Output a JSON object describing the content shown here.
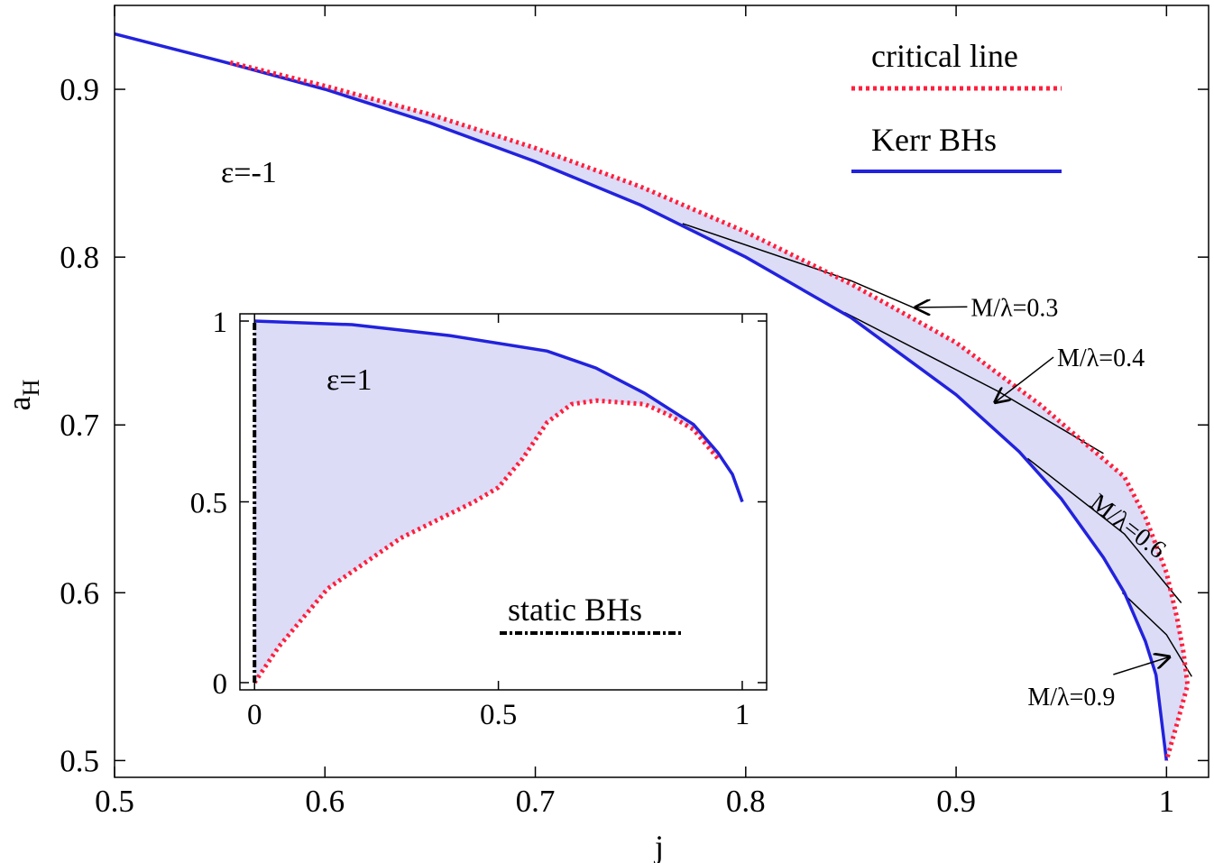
{
  "chart_data": [
    {
      "id": "main",
      "type": "line",
      "xlabel": "j",
      "ylabel": "a",
      "ylabel_sub": "H",
      "xlim": [
        0.5,
        1.02
      ],
      "ylim": [
        0.49,
        0.95
      ],
      "xticks": [
        0.5,
        0.6,
        0.7,
        0.8,
        0.9,
        1
      ],
      "xtick_labels": [
        "0.5",
        "0.6",
        "0.7",
        "0.8",
        "0.9",
        "1"
      ],
      "yticks": [
        0.5,
        0.6,
        0.7,
        0.8,
        0.9
      ],
      "ytick_labels": [
        "0.5",
        "0.6",
        "0.7",
        "0.8",
        "0.9"
      ],
      "epsilon_label": "ε=-1",
      "legend": [
        {
          "label": "critical line",
          "color": "#ff1f3d",
          "style": "dotted"
        },
        {
          "label": "Kerr BHs",
          "color": "#2222dd",
          "style": "solid"
        }
      ],
      "series": [
        {
          "name": "Kerr BHs",
          "color": "#2222dd",
          "x": [
            0.5,
            0.55,
            0.6,
            0.65,
            0.7,
            0.75,
            0.8,
            0.85,
            0.9,
            0.93,
            0.95,
            0.97,
            0.98,
            0.99,
            0.995,
            1.0
          ],
          "y": [
            0.933,
            0.917,
            0.9,
            0.88,
            0.857,
            0.831,
            0.8,
            0.764,
            0.718,
            0.684,
            0.656,
            0.621,
            0.6,
            0.571,
            0.551,
            0.5
          ]
        },
        {
          "name": "critical line",
          "color": "#ff1f3d",
          "x": [
            0.555,
            0.6,
            0.65,
            0.7,
            0.75,
            0.8,
            0.85,
            0.9,
            0.94,
            0.965,
            0.98,
            0.99,
            1.0,
            1.005,
            1.008,
            1.01,
            1.005,
            1.0
          ],
          "y": [
            0.916,
            0.902,
            0.885,
            0.865,
            0.842,
            0.815,
            0.784,
            0.749,
            0.712,
            0.685,
            0.669,
            0.645,
            0.612,
            0.585,
            0.565,
            0.545,
            0.522,
            0.5
          ]
        }
      ],
      "mass_lines": [
        {
          "label": "M/λ=0.3",
          "x": [
            0.77,
            0.85,
            0.887
          ],
          "y": [
            0.82,
            0.786,
            0.766
          ],
          "arrow_target": [
            0.88,
            0.77
          ],
          "label_at": [
            0.907,
            0.765
          ]
        },
        {
          "label": "M/λ=0.4",
          "x": [
            0.847,
            0.92,
            0.97
          ],
          "y": [
            0.767,
            0.72,
            0.683
          ],
          "arrow_target": [
            0.918,
            0.713
          ],
          "label_at": [
            0.948,
            0.735
          ]
        },
        {
          "label": "M/λ=0.6",
          "x": [
            0.934,
            0.98,
            1.007
          ],
          "y": [
            0.68,
            0.635,
            0.594
          ],
          "label_at": [
            0.963,
            0.652
          ]
        },
        {
          "label": "M/λ=0.9",
          "x": [
            0.979,
            1.0,
            1.012
          ],
          "y": [
            0.6,
            0.575,
            0.55
          ],
          "arrow_target": [
            1.002,
            0.562
          ],
          "label_at": [
            0.934,
            0.533
          ]
        }
      ]
    },
    {
      "id": "inset",
      "type": "line",
      "xlim": [
        -0.03,
        1.05
      ],
      "ylim": [
        -0.02,
        1.02
      ],
      "xticks": [
        0,
        0.5,
        1
      ],
      "xtick_labels": [
        "0",
        "0.5",
        "1"
      ],
      "yticks": [
        0,
        0.5,
        1
      ],
      "ytick_labels": [
        "0",
        "0.5",
        "1"
      ],
      "epsilon_label": "ε=1",
      "legend": [
        {
          "label": "static BHs",
          "color": "#000000",
          "style": "dash-dot"
        }
      ],
      "series": [
        {
          "name": "Kerr BHs",
          "color": "#2222dd",
          "x": [
            0,
            0.2,
            0.4,
            0.6,
            0.7,
            0.8,
            0.9,
            0.95,
            0.98,
            1.0
          ],
          "y": [
            1.0,
            0.99,
            0.96,
            0.917,
            0.87,
            0.8,
            0.714,
            0.636,
            0.576,
            0.5
          ]
        },
        {
          "name": "critical line",
          "color": "#ff1f3d",
          "x": [
            0,
            0.05,
            0.15,
            0.3,
            0.45,
            0.5,
            0.55,
            0.6,
            0.65,
            0.7,
            0.8,
            0.85,
            0.9,
            0.95
          ],
          "y": [
            0,
            0.1,
            0.26,
            0.4,
            0.5,
            0.54,
            0.62,
            0.72,
            0.77,
            0.78,
            0.77,
            0.74,
            0.7,
            0.62
          ]
        },
        {
          "name": "static BHs",
          "color": "#000000",
          "x": [
            0,
            0
          ],
          "y": [
            0,
            1
          ]
        }
      ]
    }
  ]
}
